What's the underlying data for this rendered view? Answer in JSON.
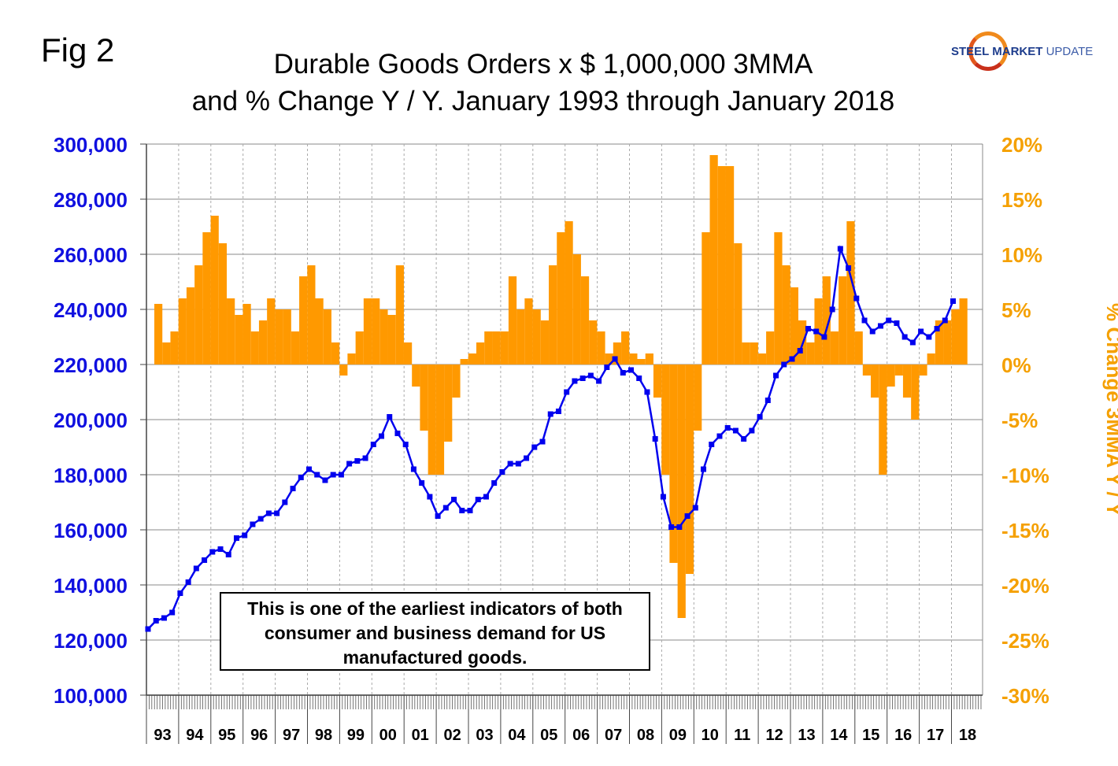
{
  "fig_label": "Fig 2",
  "logo": {
    "bold": "STEEL MARKET",
    "light": "UPDATE"
  },
  "chart_data": {
    "type": "bar+line",
    "title_line1": "Durable Goods Orders x $ 1,000,000 3MMA",
    "title_line2": "and % Change Y / Y. January 1993 through January 2018",
    "annotation": "This is one of the earliest indicators of both consumer and business demand for US manufactured goods.",
    "x_start": 1993,
    "x_end": 2018,
    "period": "quarterly",
    "x_tick_labels": [
      "93",
      "94",
      "95",
      "96",
      "97",
      "98",
      "99",
      "00",
      "01",
      "02",
      "03",
      "04",
      "05",
      "06",
      "07",
      "08",
      "09",
      "10",
      "11",
      "12",
      "13",
      "14",
      "15",
      "16",
      "17",
      "18"
    ],
    "y_left": {
      "min": 100000,
      "max": 300000,
      "step": 20000,
      "tick_labels": [
        "100,000",
        "120,000",
        "140,000",
        "160,000",
        "180,000",
        "200,000",
        "220,000",
        "240,000",
        "260,000",
        "280,000",
        "300,000"
      ]
    },
    "y_right": {
      "min": -30,
      "max": 20,
      "step": 5,
      "label": "% Change 3MMA Y / Y",
      "tick_labels": [
        "-30%",
        "-25%",
        "-20%",
        "-15%",
        "-10%",
        "-5%",
        "0%",
        "5%",
        "10%",
        "15%",
        "20%"
      ]
    },
    "series": [
      {
        "name": "Durable Goods Orders 3MMA",
        "axis": "left",
        "type": "line",
        "color": "#0000ee",
        "values": [
          124000,
          127000,
          128000,
          130000,
          137000,
          141000,
          146000,
          149000,
          152000,
          153000,
          151000,
          157000,
          158000,
          162000,
          164000,
          166000,
          166000,
          170000,
          175000,
          179000,
          182000,
          180000,
          178000,
          180000,
          180000,
          184000,
          185000,
          186000,
          191000,
          194000,
          201000,
          195000,
          191000,
          182000,
          177000,
          172000,
          165000,
          168000,
          171000,
          167000,
          167000,
          171000,
          172000,
          177000,
          181000,
          184000,
          184000,
          186000,
          190000,
          192000,
          202000,
          203000,
          210000,
          214000,
          215000,
          216000,
          214000,
          219000,
          222000,
          217000,
          218000,
          215000,
          210000,
          193000,
          172000,
          161000,
          161000,
          165000,
          168000,
          182000,
          191000,
          194000,
          197000,
          196000,
          193000,
          196000,
          201000,
          207000,
          216000,
          220000,
          222000,
          225000,
          233000,
          232000,
          230000,
          240000,
          262000,
          255000,
          244000,
          236000,
          232000,
          234000,
          236000,
          235000,
          230000,
          228000,
          232000,
          230000,
          233000,
          236000,
          243000
        ]
      },
      {
        "name": "% Change Y/Y",
        "axis": "right",
        "type": "bar",
        "color": "#ff9900",
        "values": [
          5.5,
          2,
          3,
          6,
          7,
          9,
          12,
          13.5,
          11,
          6,
          4.5,
          5.5,
          3,
          4,
          6,
          5,
          5,
          3,
          8,
          9,
          6,
          5,
          2,
          -1,
          1,
          3,
          6,
          6,
          5,
          4.5,
          9,
          2,
          -2,
          -6,
          -10,
          -10,
          -7,
          -3,
          0.5,
          1,
          2,
          3,
          3,
          3,
          8,
          5,
          6,
          5,
          4,
          9,
          12,
          13,
          10,
          8,
          4,
          3,
          1,
          2,
          3,
          1,
          0.5,
          1,
          -3,
          -10,
          -18,
          -23,
          -19,
          -6,
          12,
          19,
          18,
          18,
          11,
          2,
          2,
          1,
          3,
          12,
          9,
          7,
          4,
          2,
          6,
          8,
          3,
          8,
          13,
          3,
          -1,
          -3,
          -10,
          -2,
          -1,
          -3,
          -5,
          -1,
          1,
          4,
          4,
          5,
          6
        ]
      }
    ]
  }
}
